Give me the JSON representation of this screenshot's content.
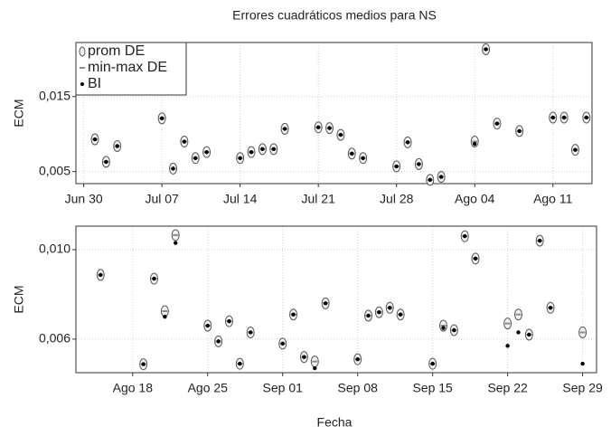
{
  "chart_data": [
    {
      "type": "scatter",
      "title": "Errores cuadráticos medios para NS",
      "ylabel": "ECM",
      "legend": "top-left",
      "grid": true,
      "x": [
        182,
        183,
        184,
        188,
        189,
        190,
        191,
        192,
        195,
        196,
        197,
        198,
        199,
        202,
        203,
        204,
        205,
        206,
        209,
        210,
        211,
        212,
        213,
        216,
        217,
        218,
        220,
        223,
        224,
        225,
        226
      ],
      "xlim": [
        180.3,
        226.5
      ],
      "xticks": [
        {
          "value": 181,
          "label": "Jun 30"
        },
        {
          "value": 188,
          "label": "Jul 07"
        },
        {
          "value": 195,
          "label": "Jul 14"
        },
        {
          "value": 202,
          "label": "Jul 21"
        },
        {
          "value": 209,
          "label": "Jul 28"
        },
        {
          "value": 216,
          "label": "Ago 04"
        },
        {
          "value": 223,
          "label": "Ago 11"
        }
      ],
      "ylim": [
        0.0034,
        0.0222
      ],
      "yticks": [
        {
          "value": 0.005,
          "label": "0,005"
        },
        {
          "value": 0.015,
          "label": "0,015"
        }
      ],
      "series": [
        {
          "name": "prom DE",
          "color": "#555555",
          "values": [
            0.0093,
            0.0063,
            0.0084,
            0.0121,
            0.0054,
            0.009,
            0.0068,
            0.0076,
            0.0068,
            0.0076,
            0.008,
            0.008,
            0.0107,
            0.0109,
            0.0108,
            0.0099,
            0.0074,
            0.0068,
            0.0057,
            0.0089,
            0.006,
            0.0039,
            0.0043,
            0.009,
            0.0213,
            0.0114,
            0.0104,
            0.0122,
            0.0122,
            0.0079,
            0.0122
          ]
        },
        {
          "name": "min-max DE",
          "color": "#8c8c8c",
          "values": [
            0.0093,
            0.0063,
            0.0084,
            0.0121,
            0.0054,
            0.009,
            0.0068,
            0.0076,
            0.0068,
            0.0076,
            0.008,
            0.008,
            0.0107,
            0.0109,
            0.0108,
            0.0099,
            0.0074,
            0.0068,
            0.0057,
            0.0089,
            0.006,
            0.0039,
            0.0043,
            0.009,
            0.0213,
            0.0114,
            0.0104,
            0.0122,
            0.0122,
            0.0079,
            0.0122
          ]
        },
        {
          "name": "BI",
          "color": "#000000",
          "values": [
            0.0093,
            0.0063,
            0.0084,
            0.0121,
            0.0054,
            0.009,
            0.0068,
            0.0076,
            0.0068,
            0.0076,
            0.008,
            0.008,
            0.0107,
            0.0109,
            0.0108,
            0.0099,
            0.0074,
            0.0068,
            0.0057,
            0.0089,
            0.006,
            0.0039,
            0.0043,
            0.0087,
            0.0213,
            0.0114,
            0.0104,
            0.0122,
            0.0122,
            0.0079,
            0.0122
          ]
        }
      ]
    },
    {
      "type": "scatter",
      "ylabel": "ECM",
      "xlabel": "Fecha",
      "grid": true,
      "x": [
        227,
        231,
        232,
        233,
        234,
        237,
        238,
        239,
        240,
        241,
        244,
        245,
        246,
        247,
        248,
        251,
        252,
        253,
        254,
        255,
        258,
        259,
        260,
        261,
        262,
        265,
        266,
        267,
        268,
        269,
        272
      ],
      "xlim": [
        224.7,
        273.3
      ],
      "xticks": [
        {
          "value": 230,
          "label": "Ago 18"
        },
        {
          "value": 237,
          "label": "Ago 25"
        },
        {
          "value": 244,
          "label": "Sep 01"
        },
        {
          "value": 251,
          "label": "Sep 08"
        },
        {
          "value": 258,
          "label": "Sep 15"
        },
        {
          "value": 265,
          "label": "Sep 22"
        },
        {
          "value": 272,
          "label": "Sep 29"
        }
      ],
      "ylim": [
        0.0045,
        0.01105
      ],
      "yticks": [
        {
          "value": 0.006,
          "label": "0,006"
        },
        {
          "value": 0.01,
          "label": "0,010"
        }
      ],
      "series": [
        {
          "color": "#555555",
          "values": [
            0.00887,
            0.00488,
            0.0087,
            0.00725,
            0.01065,
            0.0066,
            0.0059,
            0.0068,
            0.0049,
            0.0063,
            0.0058,
            0.0071,
            0.0052,
            0.005,
            0.0076,
            0.0051,
            0.00705,
            0.0072,
            0.0074,
            0.0071,
            0.0049,
            0.0066,
            0.0064,
            0.0106,
            0.0096,
            0.0067,
            0.0071,
            0.0062,
            0.0104,
            0.0074,
            0.0063
          ]
        },
        {
          "color": "#8c8c8c",
          "values": [
            0.00887,
            0.00488,
            0.0087,
            0.00725,
            0.01065,
            0.0066,
            0.0059,
            0.0068,
            0.0049,
            0.0063,
            0.0058,
            0.0071,
            0.0052,
            0.005,
            0.0076,
            0.0051,
            0.00705,
            0.0072,
            0.0074,
            0.0071,
            0.0049,
            0.0066,
            0.0064,
            0.0106,
            0.0096,
            0.0067,
            0.0071,
            0.0062,
            0.0104,
            0.0074,
            0.0063
          ]
        },
        {
          "color": "#000000",
          "values": [
            0.00887,
            0.00488,
            0.0087,
            0.007,
            0.0103,
            0.0066,
            0.0059,
            0.0068,
            0.0049,
            0.0063,
            0.0058,
            0.0071,
            0.0052,
            0.0047,
            0.0076,
            0.0051,
            0.00705,
            0.0072,
            0.0074,
            0.0071,
            0.0049,
            0.0065,
            0.0064,
            0.0106,
            0.0096,
            0.0057,
            0.0063,
            0.0062,
            0.0104,
            0.0074,
            0.0049
          ]
        }
      ]
    }
  ]
}
